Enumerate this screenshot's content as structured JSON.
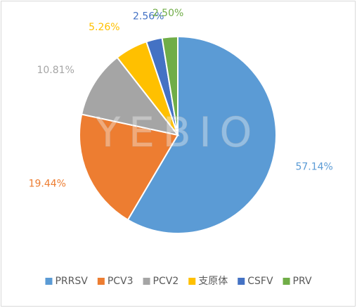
{
  "chart_data": {
    "type": "pie",
    "watermark": "YEBIO",
    "categories": [
      "PRRSV",
      "PCV3",
      "PCV2",
      "支原体",
      "CSFV",
      "PRV"
    ],
    "values": [
      57.14,
      19.44,
      10.81,
      5.26,
      2.56,
      2.5
    ],
    "value_labels": [
      "57.14%",
      "19.44%",
      "10.81%",
      "5.26%",
      "2.56%",
      "2.50%"
    ],
    "colors": [
      "#5b9bd5",
      "#ed7d31",
      "#a5a5a5",
      "#ffc000",
      "#4472c4",
      "#70ad47"
    ],
    "legend": "bottom"
  }
}
